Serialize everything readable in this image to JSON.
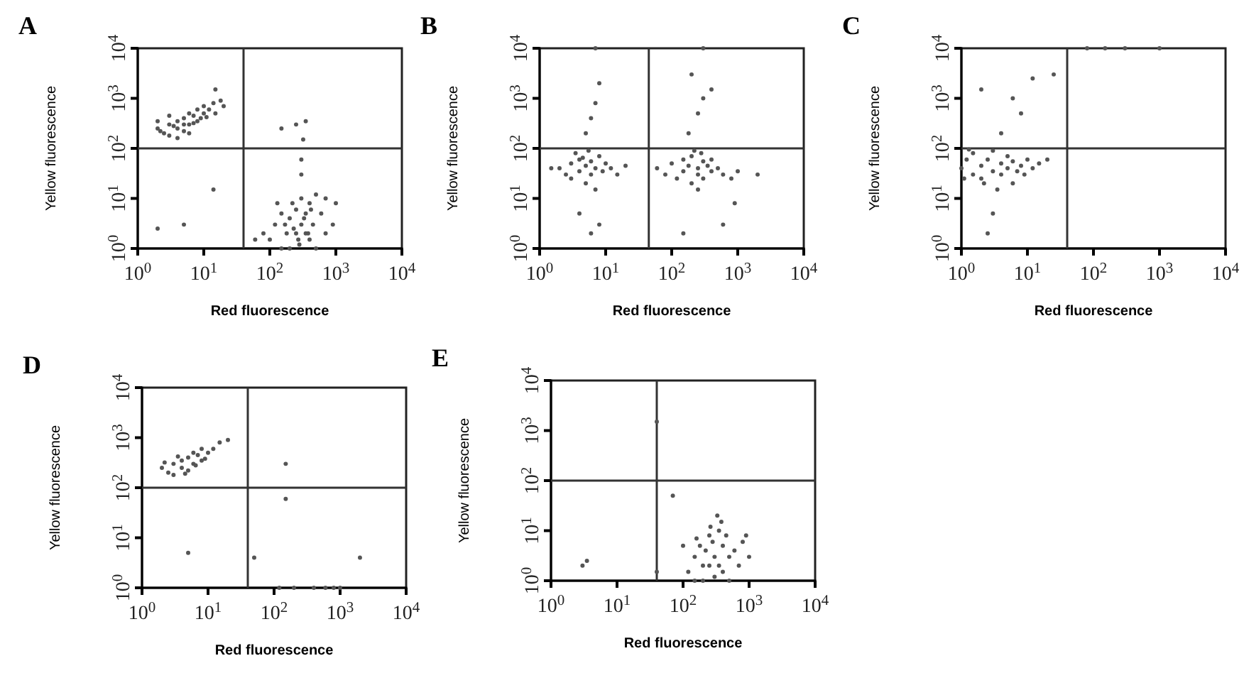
{
  "chart_data": [
    {
      "type": "scatter",
      "title": "A",
      "xlabel": "Red fluorescence",
      "ylabel": "Yellow fluorescence",
      "log": "xy",
      "xlim": [
        1,
        10000
      ],
      "ylim": [
        1,
        10000
      ],
      "marker": "circle",
      "xticks": [
        {
          "value": 1,
          "label": "10$^{0}$"
        },
        {
          "value": 10,
          "label": "10$^{1}$"
        },
        {
          "value": 100,
          "label": "10$^{2}$"
        },
        {
          "value": 1000,
          "label": "10$^{3}$"
        },
        {
          "value": 10000,
          "label": "10$^{4}$"
        }
      ],
      "yticks": [
        {
          "value": 1,
          "label": "10$^{0}$"
        },
        {
          "value": 10,
          "label": "10$^{1}$"
        },
        {
          "value": 100,
          "label": "10$^{2}$"
        },
        {
          "value": 1000,
          "label": "10$^{3}$"
        },
        {
          "value": 10000,
          "label": "10$^{4}$"
        }
      ],
      "ref_lines": [
        {
          "axis": "x",
          "value": 40,
          "color": "#333333"
        },
        {
          "axis": "y",
          "value": 100,
          "color": "#333333"
        }
      ],
      "series": [
        {
          "color": "#555555",
          "x": [
            2,
            2.5,
            3,
            3,
            4,
            4,
            5,
            5,
            6,
            6,
            7,
            8,
            8,
            10,
            10,
            12,
            14,
            15,
            2,
            3,
            5,
            6,
            9,
            18,
            20,
            4,
            3.5,
            7,
            11,
            2.2,
            2,
            5,
            14,
            15,
            100,
            120,
            150,
            150,
            180,
            200,
            200,
            220,
            250,
            250,
            280,
            300,
            300,
            350,
            350,
            400,
            400,
            450,
            500,
            500,
            600,
            700,
            900,
            1000,
            80,
            60,
            130,
            300,
            300,
            320,
            250,
            350,
            150,
            700,
            170,
            230,
            270,
            330,
            380,
            420
          ],
          "values": [
            250,
            200,
            300,
            180,
            350,
            250,
            400,
            220,
            300,
            500,
            450,
            350,
            600,
            500,
            700,
            600,
            800,
            500,
            350,
            450,
            300,
            200,
            400,
            900,
            700,
            160,
            280,
            320,
            420,
            220,
            2.5,
            3,
            15,
            1500,
            1.5,
            3,
            1,
            5,
            2,
            1,
            4,
            8,
            2,
            6,
            1.2,
            3,
            10,
            2,
            5,
            1.5,
            8,
            3,
            1,
            12,
            5,
            10,
            3,
            8,
            2,
            1.5,
            8,
            30,
            60,
            150,
            300,
            350,
            250,
            2,
            3,
            2.5,
            1.5,
            4,
            2,
            6
          ]
        }
      ]
    },
    {
      "type": "scatter",
      "title": "B",
      "xlabel": "Red fluorescence",
      "ylabel": "Yellow fluorescence",
      "log": "xy",
      "xlim": [
        1,
        10000
      ],
      "ylim": [
        1,
        10000
      ],
      "marker": "circle",
      "xticks": [
        {
          "value": 1,
          "label": "10$^{0}$"
        },
        {
          "value": 10,
          "label": "10$^{1}$"
        },
        {
          "value": 100,
          "label": "10$^{2}$"
        },
        {
          "value": 1000,
          "label": "10$^{3}$"
        },
        {
          "value": 10000,
          "label": "10$^{4}$"
        }
      ],
      "yticks": [
        {
          "value": 1,
          "label": "10$^{0}$"
        },
        {
          "value": 10,
          "label": "10$^{1}$"
        },
        {
          "value": 100,
          "label": "10$^{2}$"
        },
        {
          "value": 1000,
          "label": "10$^{3}$"
        },
        {
          "value": 10000,
          "label": "10$^{4}$"
        }
      ],
      "ref_lines": [
        {
          "axis": "x",
          "value": 45,
          "color": "#333333"
        },
        {
          "axis": "y",
          "value": 100,
          "color": "#333333"
        }
      ],
      "series": [
        {
          "color": "#555555",
          "x": [
            2,
            2.5,
            3,
            3,
            4,
            4,
            5,
            5,
            6,
            6,
            7,
            8,
            9,
            10,
            12,
            15,
            3.5,
            4.5,
            5.5,
            7,
            1.5,
            20,
            5,
            6,
            7,
            8,
            4,
            6,
            8,
            7,
            60,
            80,
            100,
            120,
            150,
            150,
            180,
            200,
            200,
            250,
            250,
            300,
            300,
            350,
            400,
            400,
            500,
            600,
            800,
            1000,
            220,
            280,
            180,
            250,
            300,
            200,
            300,
            400,
            150,
            600,
            2000,
            900,
            250
          ],
          "values": [
            40,
            30,
            50,
            25,
            60,
            35,
            45,
            20,
            55,
            30,
            40,
            70,
            35,
            50,
            40,
            30,
            80,
            65,
            90,
            15,
            40,
            45,
            200,
            400,
            800,
            2000,
            5,
            2,
            3,
            10000,
            40,
            30,
            50,
            25,
            60,
            35,
            45,
            20,
            70,
            40,
            30,
            55,
            25,
            45,
            35,
            60,
            40,
            30,
            25,
            35,
            90,
            80,
            200,
            500,
            1000,
            3000,
            10000,
            1500,
            2,
            3,
            30,
            8,
            15
          ]
        }
      ]
    },
    {
      "type": "scatter",
      "title": "C",
      "xlabel": "Red fluorescence",
      "ylabel": "Yellow fluorescence",
      "log": "xy",
      "xlim": [
        1,
        10000
      ],
      "ylim": [
        1,
        10000
      ],
      "marker": "circle",
      "xticks": [
        {
          "value": 1,
          "label": "10$^{0}$"
        },
        {
          "value": 10,
          "label": "10$^{1}$"
        },
        {
          "value": 100,
          "label": "10$^{2}$"
        },
        {
          "value": 1000,
          "label": "10$^{3}$"
        },
        {
          "value": 10000,
          "label": "10$^{4}$"
        }
      ],
      "yticks": [
        {
          "value": 1,
          "label": "10$^{0}$"
        },
        {
          "value": 10,
          "label": "10$^{1}$"
        },
        {
          "value": 100,
          "label": "10$^{2}$"
        },
        {
          "value": 1000,
          "label": "10$^{3}$"
        },
        {
          "value": 10000,
          "label": "10$^{4}$"
        }
      ],
      "ref_lines": [
        {
          "axis": "x",
          "value": 40,
          "color": "#333333"
        },
        {
          "axis": "y",
          "value": 100,
          "color": "#333333"
        }
      ],
      "series": [
        {
          "color": "#555555",
          "x": [
            1,
            1.2,
            1.5,
            1.5,
            2,
            2,
            2.5,
            3,
            3,
            4,
            4,
            5,
            5,
            6,
            7,
            8,
            10,
            12,
            1.1,
            1.3,
            2.2,
            3.5,
            6,
            9,
            15,
            20,
            2,
            4,
            6,
            8,
            12,
            25,
            2.5,
            3,
            80,
            150,
            300,
            1000
          ],
          "values": [
            40,
            60,
            30,
            80,
            45,
            25,
            60,
            35,
            90,
            50,
            30,
            70,
            40,
            55,
            35,
            45,
            60,
            40,
            25,
            95,
            20,
            15,
            20,
            30,
            50,
            60,
            1500,
            200,
            1000,
            500,
            2500,
            3000,
            2,
            5,
            10000,
            10000,
            10000,
            10000
          ]
        }
      ]
    },
    {
      "type": "scatter",
      "title": "D",
      "xlabel": "Red fluorescence",
      "ylabel": "Yellow fluorescence",
      "log": "xy",
      "xlim": [
        1,
        10000
      ],
      "ylim": [
        1,
        10000
      ],
      "marker": "circle",
      "xticks": [
        {
          "value": 1,
          "label": "10$^{0}$"
        },
        {
          "value": 10,
          "label": "10$^{1}$"
        },
        {
          "value": 100,
          "label": "10$^{2}$"
        },
        {
          "value": 1000,
          "label": "10$^{3}$"
        },
        {
          "value": 10000,
          "label": "10$^{4}$"
        }
      ],
      "yticks": [
        {
          "value": 1,
          "label": "10$^{0}$"
        },
        {
          "value": 10,
          "label": "10$^{1}$"
        },
        {
          "value": 100,
          "label": "10$^{2}$"
        },
        {
          "value": 1000,
          "label": "10$^{3}$"
        },
        {
          "value": 10000,
          "label": "10$^{4}$"
        }
      ],
      "ref_lines": [
        {
          "axis": "x",
          "value": 40,
          "color": "#333333"
        },
        {
          "axis": "y",
          "value": 100,
          "color": "#333333"
        }
      ],
      "series": [
        {
          "color": "#555555",
          "x": [
            2,
            2.5,
            3,
            3,
            4,
            4,
            5,
            5,
            6,
            6,
            7,
            8,
            8,
            10,
            12,
            2.2,
            3.5,
            4.5,
            6.5,
            9,
            15,
            20,
            5,
            50,
            150,
            150,
            2000,
            120,
            200,
            400,
            600,
            800,
            1000
          ],
          "values": [
            250,
            200,
            300,
            180,
            350,
            250,
            400,
            220,
            300,
            500,
            450,
            350,
            600,
            500,
            600,
            320,
            420,
            190,
            280,
            380,
            800,
            900,
            5,
            4,
            300,
            60,
            4,
            1,
            1,
            1,
            1,
            1,
            1
          ]
        }
      ]
    },
    {
      "type": "scatter",
      "title": "E",
      "xlabel": "Red fluorescence",
      "ylabel": "Yellow fluorescence",
      "log": "xy",
      "xlim": [
        1,
        10000
      ],
      "ylim": [
        1,
        10000
      ],
      "marker": "circle",
      "xticks": [
        {
          "value": 1,
          "label": "10$^{0}$"
        },
        {
          "value": 10,
          "label": "10$^{1}$"
        },
        {
          "value": 100,
          "label": "10$^{2}$"
        },
        {
          "value": 1000,
          "label": "10$^{3}$"
        },
        {
          "value": 10000,
          "label": "10$^{4}$"
        }
      ],
      "yticks": [
        {
          "value": 1,
          "label": "10$^{0}$"
        },
        {
          "value": 10,
          "label": "10$^{1}$"
        },
        {
          "value": 100,
          "label": "10$^{2}$"
        },
        {
          "value": 1000,
          "label": "10$^{3}$"
        },
        {
          "value": 10000,
          "label": "10$^{4}$"
        }
      ],
      "ref_lines": [
        {
          "axis": "x",
          "value": 40,
          "color": "#333333"
        },
        {
          "axis": "y",
          "value": 100,
          "color": "#333333"
        }
      ],
      "series": [
        {
          "color": "#555555",
          "x": [
            120,
            150,
            150,
            180,
            200,
            200,
            220,
            250,
            250,
            280,
            300,
            300,
            350,
            350,
            400,
            400,
            450,
            500,
            500,
            600,
            700,
            800,
            160,
            260,
            330,
            380,
            100,
            900,
            1000,
            70,
            40,
            3,
            3.5,
            40
          ],
          "values": [
            1.5,
            3,
            1,
            5,
            2,
            1,
            4,
            8,
            2,
            6,
            1.2,
            3,
            10,
            2,
            5,
            1.5,
            8,
            3,
            1,
            4,
            2,
            6,
            7,
            12,
            20,
            15,
            5,
            8,
            3,
            50,
            1500,
            2,
            2.5,
            1.5
          ]
        }
      ]
    }
  ]
}
